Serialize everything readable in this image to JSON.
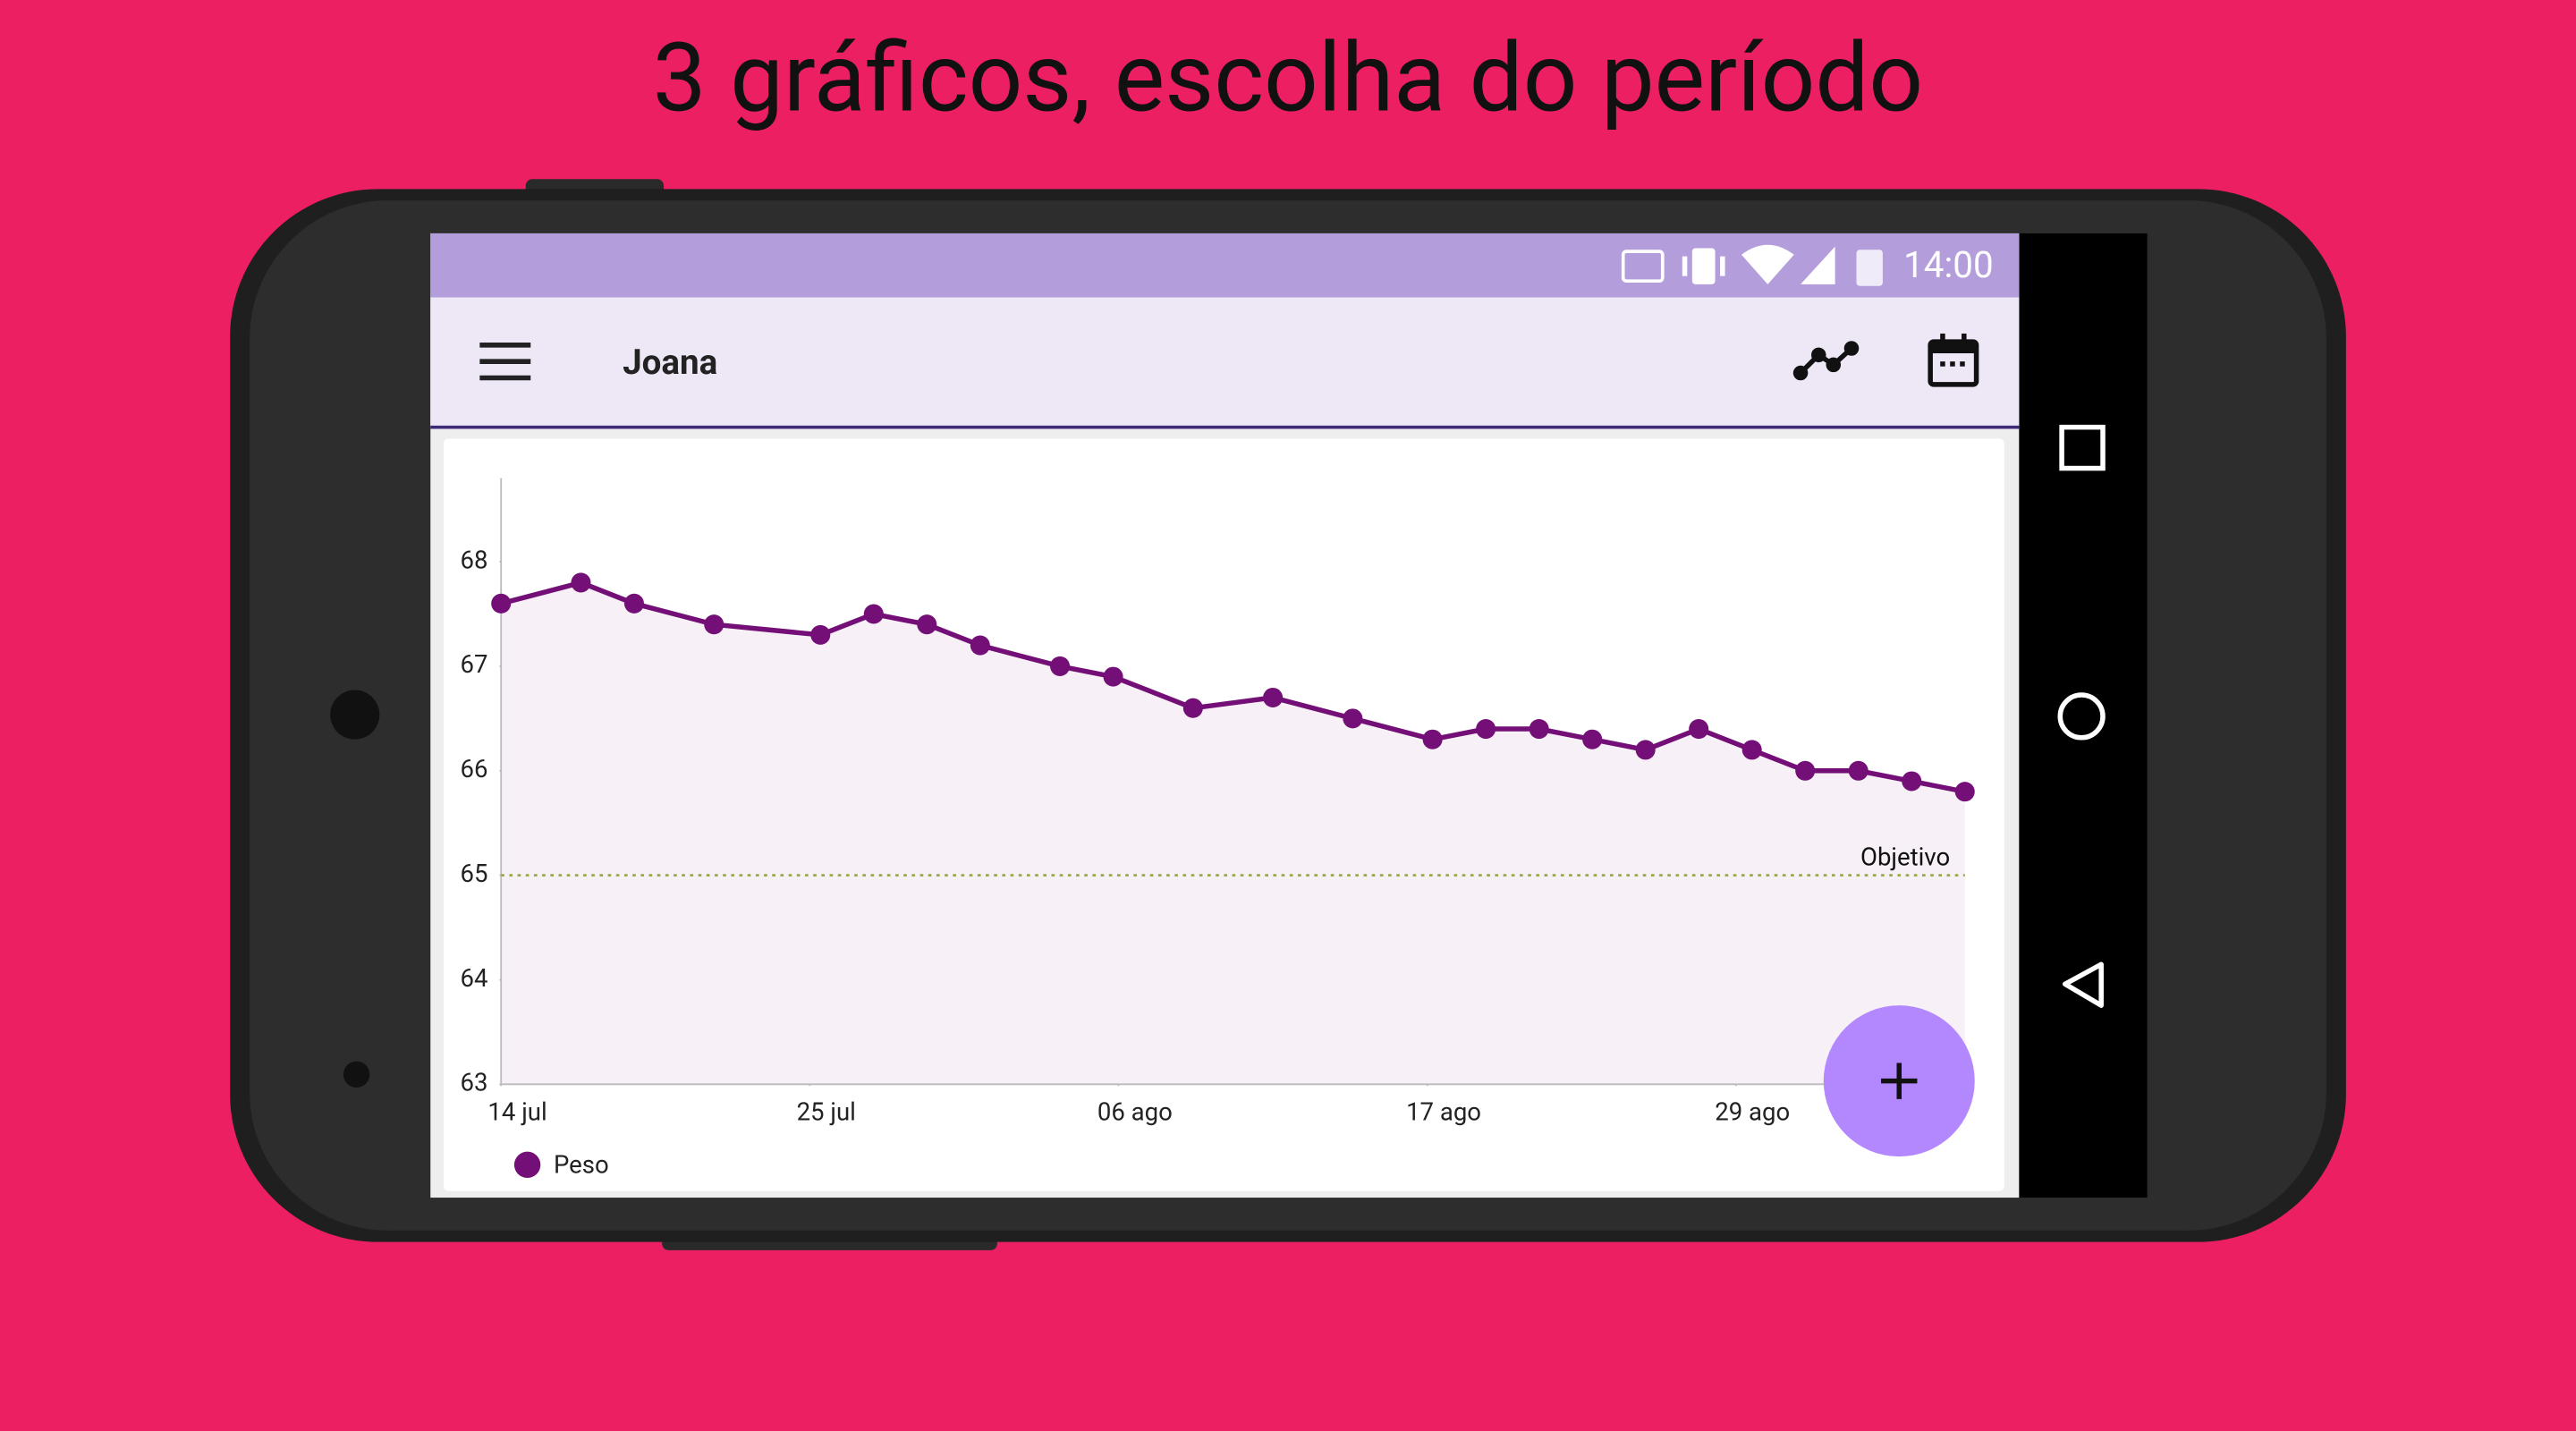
{
  "header": {
    "title": "3 gráficos, escolha do período"
  },
  "status_bar": {
    "time": "14:00"
  },
  "app_bar": {
    "title": "Joana"
  },
  "chart_data": {
    "type": "line",
    "x": [
      0,
      3,
      5,
      8,
      12,
      14,
      16,
      18,
      21,
      23,
      26,
      29,
      32,
      35,
      37,
      39,
      41,
      43,
      45,
      47,
      49,
      51,
      53,
      55
    ],
    "series": [
      {
        "name": "Peso",
        "color": "#730f76",
        "values": [
          67.6,
          67.8,
          67.6,
          67.4,
          67.3,
          67.5,
          67.4,
          67.2,
          67.0,
          66.9,
          66.6,
          66.7,
          66.5,
          66.3,
          66.4,
          66.4,
          66.3,
          66.2,
          66.4,
          66.2,
          66.0,
          66.0,
          65.9,
          65.8
        ]
      }
    ],
    "xlim": [
      0,
      55
    ],
    "xticks": [
      {
        "value": 0,
        "label": "14 jul"
      },
      {
        "value": 11.6,
        "label": "25 jul"
      },
      {
        "value": 23.2,
        "label": "06 ago"
      },
      {
        "value": 34.8,
        "label": "17 ago"
      },
      {
        "value": 46.4,
        "label": "29 ago"
      }
    ],
    "ylim": [
      63,
      68.8
    ],
    "yticks": [
      63,
      64,
      65,
      66,
      67,
      68
    ],
    "goal": {
      "value": 65,
      "label": "Objetivo",
      "color": "#9aa84a"
    },
    "fill_area": true
  }
}
